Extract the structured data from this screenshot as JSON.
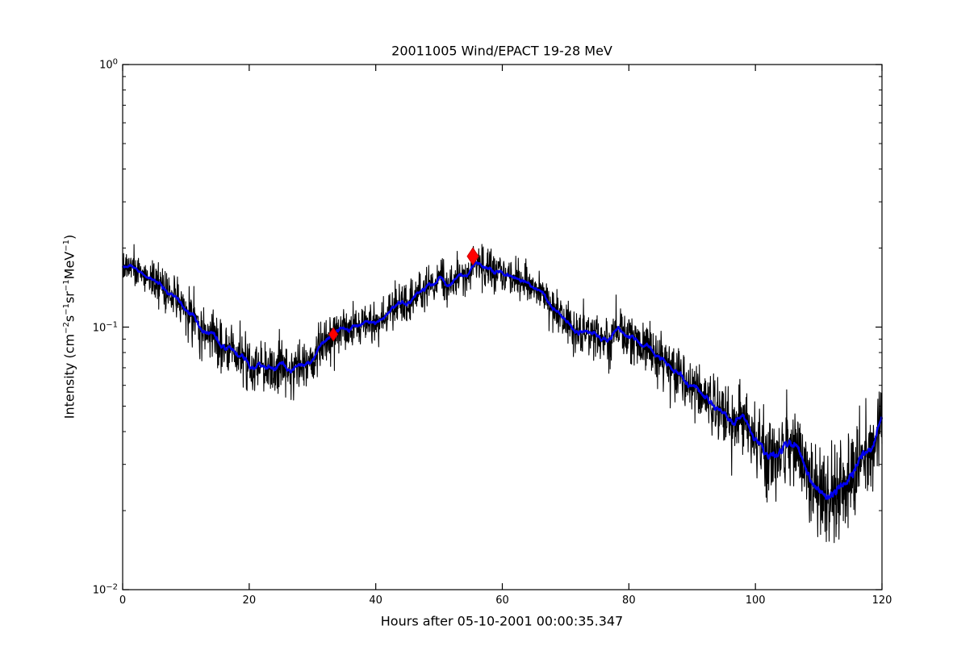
{
  "title": "20011005 Wind/EPACT 19-28 MeV",
  "x_axis_label": "Hours after 05-10-2001 00:00:35.347",
  "chart_data": {
    "type": "line",
    "title": "20011005 Wind/EPACT 19-28 MeV",
    "xlabel": "Hours after 05-10-2001 00:00:35.347",
    "ylabel_segments": [
      {
        "text": "Intensity (cm"
      },
      {
        "sup": "−2"
      },
      {
        "text": "s"
      },
      {
        "sup": "−1"
      },
      {
        "text": "sr"
      },
      {
        "sup": "−1"
      },
      {
        "text": "MeV"
      },
      {
        "sup": "−1"
      },
      {
        "text": ")"
      }
    ],
    "background_color": "#ffffff",
    "frame_color": "#000000",
    "grid": false,
    "legend": false,
    "x_axis": {
      "min": 0,
      "max": 120,
      "scale": "linear",
      "ticks": [
        0,
        20,
        40,
        60,
        80,
        100,
        120
      ]
    },
    "y_axis": {
      "min": 0.01,
      "max": 1,
      "scale": "log",
      "tick_exponents": [
        0,
        -1,
        -2
      ],
      "minor_tick_mantissas": [
        2,
        3,
        4,
        5,
        6,
        7,
        8,
        9
      ]
    },
    "series": [
      {
        "name": "raw-intensity",
        "color": "#000000",
        "line_width": 1.1,
        "style": "noisy",
        "points_count": 2400,
        "noise_sigma_coeff": 0.032,
        "seed": 1234567
      },
      {
        "name": "smoothed-intensity",
        "color": "#0000ee",
        "line_width": 2.4,
        "style": "smooth",
        "smoothing_window": 25,
        "control_points": [
          [
            0,
            0.178
          ],
          [
            1,
            0.173
          ],
          [
            2,
            0.168
          ],
          [
            3,
            0.1625
          ],
          [
            4,
            0.157
          ],
          [
            5,
            0.151
          ],
          [
            6,
            0.145
          ],
          [
            7,
            0.139
          ],
          [
            8,
            0.133
          ],
          [
            9,
            0.1265
          ],
          [
            10,
            0.12
          ],
          [
            11,
            0.111
          ],
          [
            12,
            0.102
          ],
          [
            13,
            0.0965
          ],
          [
            14,
            0.092
          ],
          [
            15,
            0.0885
          ],
          [
            16,
            0.0845
          ],
          [
            17,
            0.081
          ],
          [
            18,
            0.0775
          ],
          [
            19,
            0.0745
          ],
          [
            20,
            0.0725
          ],
          [
            21,
            0.0705
          ],
          [
            22,
            0.0695
          ],
          [
            23,
            0.0697
          ],
          [
            24,
            0.0705
          ],
          [
            25,
            0.0698
          ],
          [
            26,
            0.0693
          ],
          [
            27,
            0.07
          ],
          [
            28,
            0.0713
          ],
          [
            29,
            0.0738
          ],
          [
            30,
            0.0775
          ],
          [
            31,
            0.083
          ],
          [
            32,
            0.089
          ],
          [
            33,
            0.0925
          ],
          [
            34,
            0.0955
          ],
          [
            35,
            0.0975
          ],
          [
            36,
            0.0995
          ],
          [
            37,
            0.1015
          ],
          [
            38,
            0.1035
          ],
          [
            39,
            0.1055
          ],
          [
            40,
            0.108
          ],
          [
            41,
            0.1115
          ],
          [
            42,
            0.115
          ],
          [
            43,
            0.1185
          ],
          [
            44,
            0.122
          ],
          [
            45,
            0.1265
          ],
          [
            46,
            0.131
          ],
          [
            47,
            0.136
          ],
          [
            48,
            0.141
          ],
          [
            49,
            0.146
          ],
          [
            50,
            0.149
          ],
          [
            51,
            0.1455
          ],
          [
            52,
            0.1485
          ],
          [
            53,
            0.1525
          ],
          [
            54,
            0.1545
          ],
          [
            55,
            0.162
          ],
          [
            55.4,
            0.181
          ],
          [
            55.9,
            0.169
          ],
          [
            56.5,
            0.167
          ],
          [
            57,
            0.166
          ],
          [
            58,
            0.169
          ],
          [
            59,
            0.162
          ],
          [
            60,
            0.159
          ],
          [
            61,
            0.158
          ],
          [
            62,
            0.1565
          ],
          [
            63,
            0.152
          ],
          [
            64,
            0.147
          ],
          [
            65,
            0.141
          ],
          [
            66,
            0.134
          ],
          [
            67,
            0.127
          ],
          [
            68,
            0.119
          ],
          [
            69,
            0.112
          ],
          [
            70,
            0.106
          ],
          [
            71,
            0.102
          ],
          [
            72,
            0.1
          ],
          [
            73,
            0.097
          ],
          [
            74,
            0.0945
          ],
          [
            75,
            0.0935
          ],
          [
            76,
            0.0932
          ],
          [
            77,
            0.0935
          ],
          [
            78,
            0.094
          ],
          [
            79,
            0.0925
          ],
          [
            80,
            0.091
          ],
          [
            81,
            0.0885
          ],
          [
            82,
            0.086
          ],
          [
            83,
            0.083
          ],
          [
            84,
            0.08
          ],
          [
            85,
            0.077
          ],
          [
            86,
            0.0725
          ],
          [
            87,
            0.069
          ],
          [
            88,
            0.0655
          ],
          [
            89,
            0.0625
          ],
          [
            90,
            0.06
          ],
          [
            91,
            0.0578
          ],
          [
            92,
            0.0555
          ],
          [
            93,
            0.0515
          ],
          [
            94,
            0.048
          ],
          [
            95,
            0.046
          ],
          [
            96,
            0.0445
          ],
          [
            97,
            0.0435
          ],
          [
            98,
            0.0425
          ],
          [
            99,
            0.0405
          ],
          [
            100,
            0.0385
          ],
          [
            101,
            0.036
          ],
          [
            102,
            0.0335
          ],
          [
            103,
            0.0332
          ],
          [
            104,
            0.0335
          ],
          [
            105,
            0.0355
          ],
          [
            106,
            0.0365
          ],
          [
            107,
            0.034
          ],
          [
            108,
            0.0295
          ],
          [
            109,
            0.0268
          ],
          [
            110,
            0.0245
          ],
          [
            111,
            0.023
          ],
          [
            112,
            0.022
          ],
          [
            113,
            0.0225
          ],
          [
            114,
            0.025
          ],
          [
            115,
            0.0265
          ],
          [
            116,
            0.029
          ],
          [
            117,
            0.0305
          ],
          [
            118,
            0.034
          ],
          [
            119,
            0.038
          ],
          [
            120,
            0.0425
          ]
        ]
      },
      {
        "name": "event-markers",
        "color": "#ff0000",
        "edge_color": "#cc0000",
        "marker": "thin-diamond",
        "points": [
          {
            "x": 33.3,
            "y": 0.0938,
            "w": 11,
            "h": 16
          },
          {
            "x": 55.35,
            "y": 0.186,
            "w": 14,
            "h": 21
          }
        ]
      }
    ]
  }
}
